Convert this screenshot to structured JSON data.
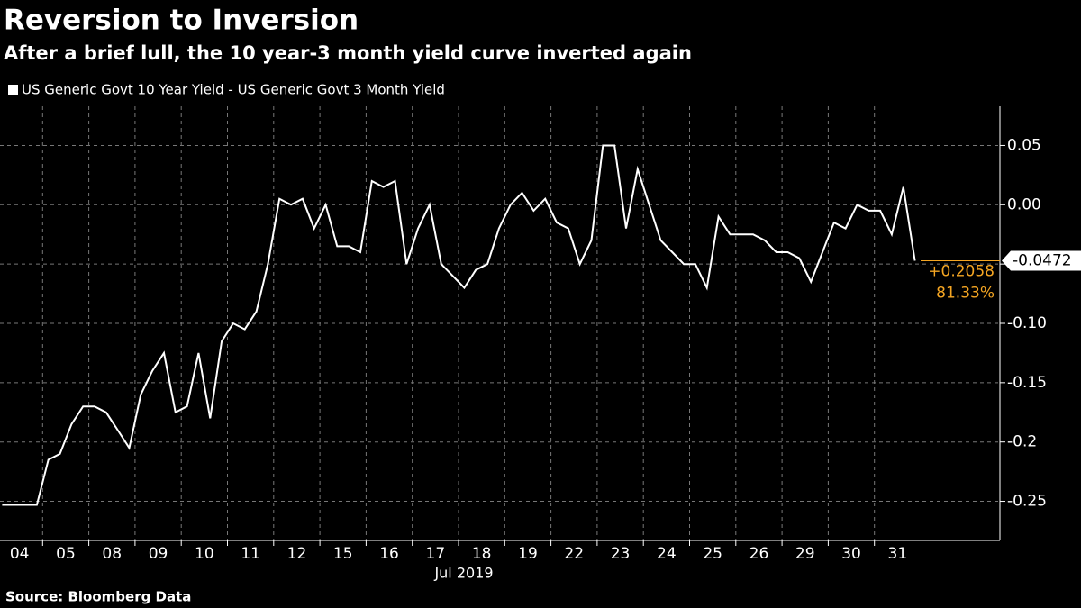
{
  "chart_data": {
    "type": "line",
    "title": "Reversion to Inversion",
    "subtitle": "After a brief lull, the 10 year-3 month yield curve inverted again",
    "source": "Source: Bloomberg Data",
    "xlabel": "Jul 2019",
    "categories": [
      "04",
      null,
      null,
      null,
      "05",
      null,
      null,
      null,
      "08",
      null,
      null,
      null,
      "09",
      null,
      null,
      null,
      "10",
      null,
      null,
      null,
      "11",
      null,
      null,
      null,
      "12",
      null,
      null,
      null,
      "15",
      null,
      null,
      null,
      "16",
      null,
      null,
      null,
      "17",
      null,
      null,
      null,
      "18",
      null,
      null,
      null,
      "19",
      null,
      null,
      null,
      "22",
      null,
      null,
      null,
      "23",
      null,
      null,
      null,
      "24",
      null,
      null,
      null,
      "25",
      null,
      null,
      null,
      "26",
      null,
      null,
      null,
      "29",
      null,
      null,
      null,
      "30",
      null,
      null,
      null,
      "31",
      null,
      null,
      null
    ],
    "series": [
      {
        "name": "US Generic Govt 10 Year Yield - US Generic Govt 3 Month Yield",
        "color": "#ffffff",
        "values": [
          -0.253,
          -0.253,
          -0.253,
          -0.253,
          -0.215,
          -0.21,
          -0.185,
          -0.17,
          -0.17,
          -0.175,
          -0.19,
          -0.205,
          -0.16,
          -0.14,
          -0.125,
          -0.175,
          -0.17,
          -0.125,
          -0.18,
          -0.115,
          -0.1,
          -0.105,
          -0.09,
          -0.05,
          0.005,
          0.0,
          0.005,
          -0.02,
          0.0,
          -0.035,
          -0.035,
          -0.04,
          0.02,
          0.015,
          0.02,
          -0.05,
          -0.02,
          0.0,
          -0.05,
          -0.06,
          -0.07,
          -0.055,
          -0.05,
          -0.02,
          0.0,
          0.01,
          -0.005,
          0.005,
          -0.015,
          -0.02,
          -0.05,
          -0.03,
          0.05,
          0.05,
          -0.02,
          0.03,
          0.0,
          -0.03,
          -0.04,
          -0.05,
          -0.05,
          -0.07,
          -0.01,
          -0.025,
          -0.025,
          -0.025,
          -0.03,
          -0.04,
          -0.04,
          -0.045,
          -0.065,
          -0.04,
          -0.015,
          -0.02,
          0.0,
          -0.005,
          -0.005,
          -0.025,
          0.015,
          -0.0472
        ]
      }
    ],
    "ylim": [
      -0.283,
      0.083
    ],
    "yticks": [
      0.05,
      {
        "value": 0,
        "label": "0.00"
      },
      -0.05,
      {
        "value": -0.1,
        "label": "-0.10"
      },
      -0.15,
      -0.2,
      -0.25
    ],
    "grid": true,
    "last_value": {
      "value": -0.0472,
      "label": "-0.0472"
    },
    "annotations": [
      "+0.2058",
      "81.33%"
    ],
    "annotation_color": "#f5a623"
  }
}
